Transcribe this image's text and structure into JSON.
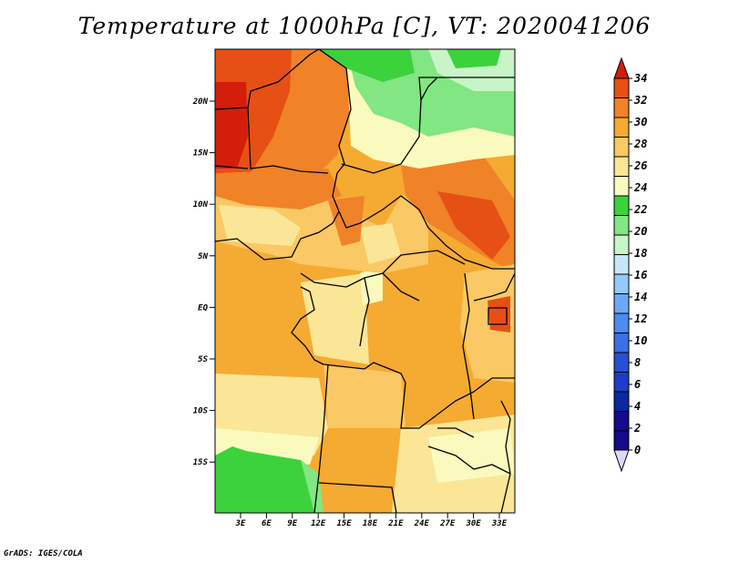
{
  "title": "Temperature at 1000hPa [C], VT: 2020041206",
  "credit": "GrADS: IGES/COLA",
  "map": {
    "lon_range": [
      0,
      35
    ],
    "lat_range": [
      -20,
      25
    ],
    "x_ticks": [
      "3E",
      "6E",
      "9E",
      "12E",
      "15E",
      "18E",
      "21E",
      "24E",
      "27E",
      "30E",
      "33E"
    ],
    "y_ticks": [
      "20N",
      "15N",
      "10N",
      "5N",
      "EQ",
      "5S",
      "10S",
      "15S"
    ]
  },
  "colorbar": {
    "labels": [
      "0",
      "2",
      "4",
      "6",
      "8",
      "10",
      "12",
      "14",
      "16",
      "18",
      "20",
      "22",
      "24",
      "26",
      "28",
      "30",
      "32",
      "34"
    ],
    "colors": [
      "#160a8c",
      "#0a28a0",
      "#1e3cc8",
      "#2850d2",
      "#3c6ee6",
      "#4a8cf0",
      "#6ea8f5",
      "#96c8fa",
      "#c8e6fa",
      "#c8f5c8",
      "#82e682",
      "#3cd23c",
      "#fafabe",
      "#fae696",
      "#fac864",
      "#f5aa32",
      "#f08228",
      "#e65014",
      "#d21e0a"
    ],
    "under_color": "#ddd8f5"
  }
}
